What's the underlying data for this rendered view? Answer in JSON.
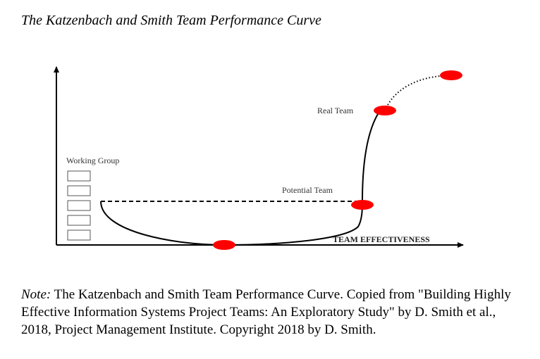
{
  "title": "The Katzenbach and Smith Team Performance Curve",
  "diagram": {
    "x_axis_label": "TEAM EFFECTIVENESS",
    "labels": {
      "working_group": "Working Group",
      "potential_team": "Potential Team",
      "real_team": "Real Team"
    },
    "marker_color": "#ff0000"
  },
  "note": {
    "lead": "Note:",
    "text": " The Katzenbach and Smith Team Performance Curve. Copied from \"Building Highly Effective Information Systems Project Teams: An Exploratory Study\" by D. Smith et al., 2018, Project Management Institute. Copyright 2018 by D. Smith."
  }
}
